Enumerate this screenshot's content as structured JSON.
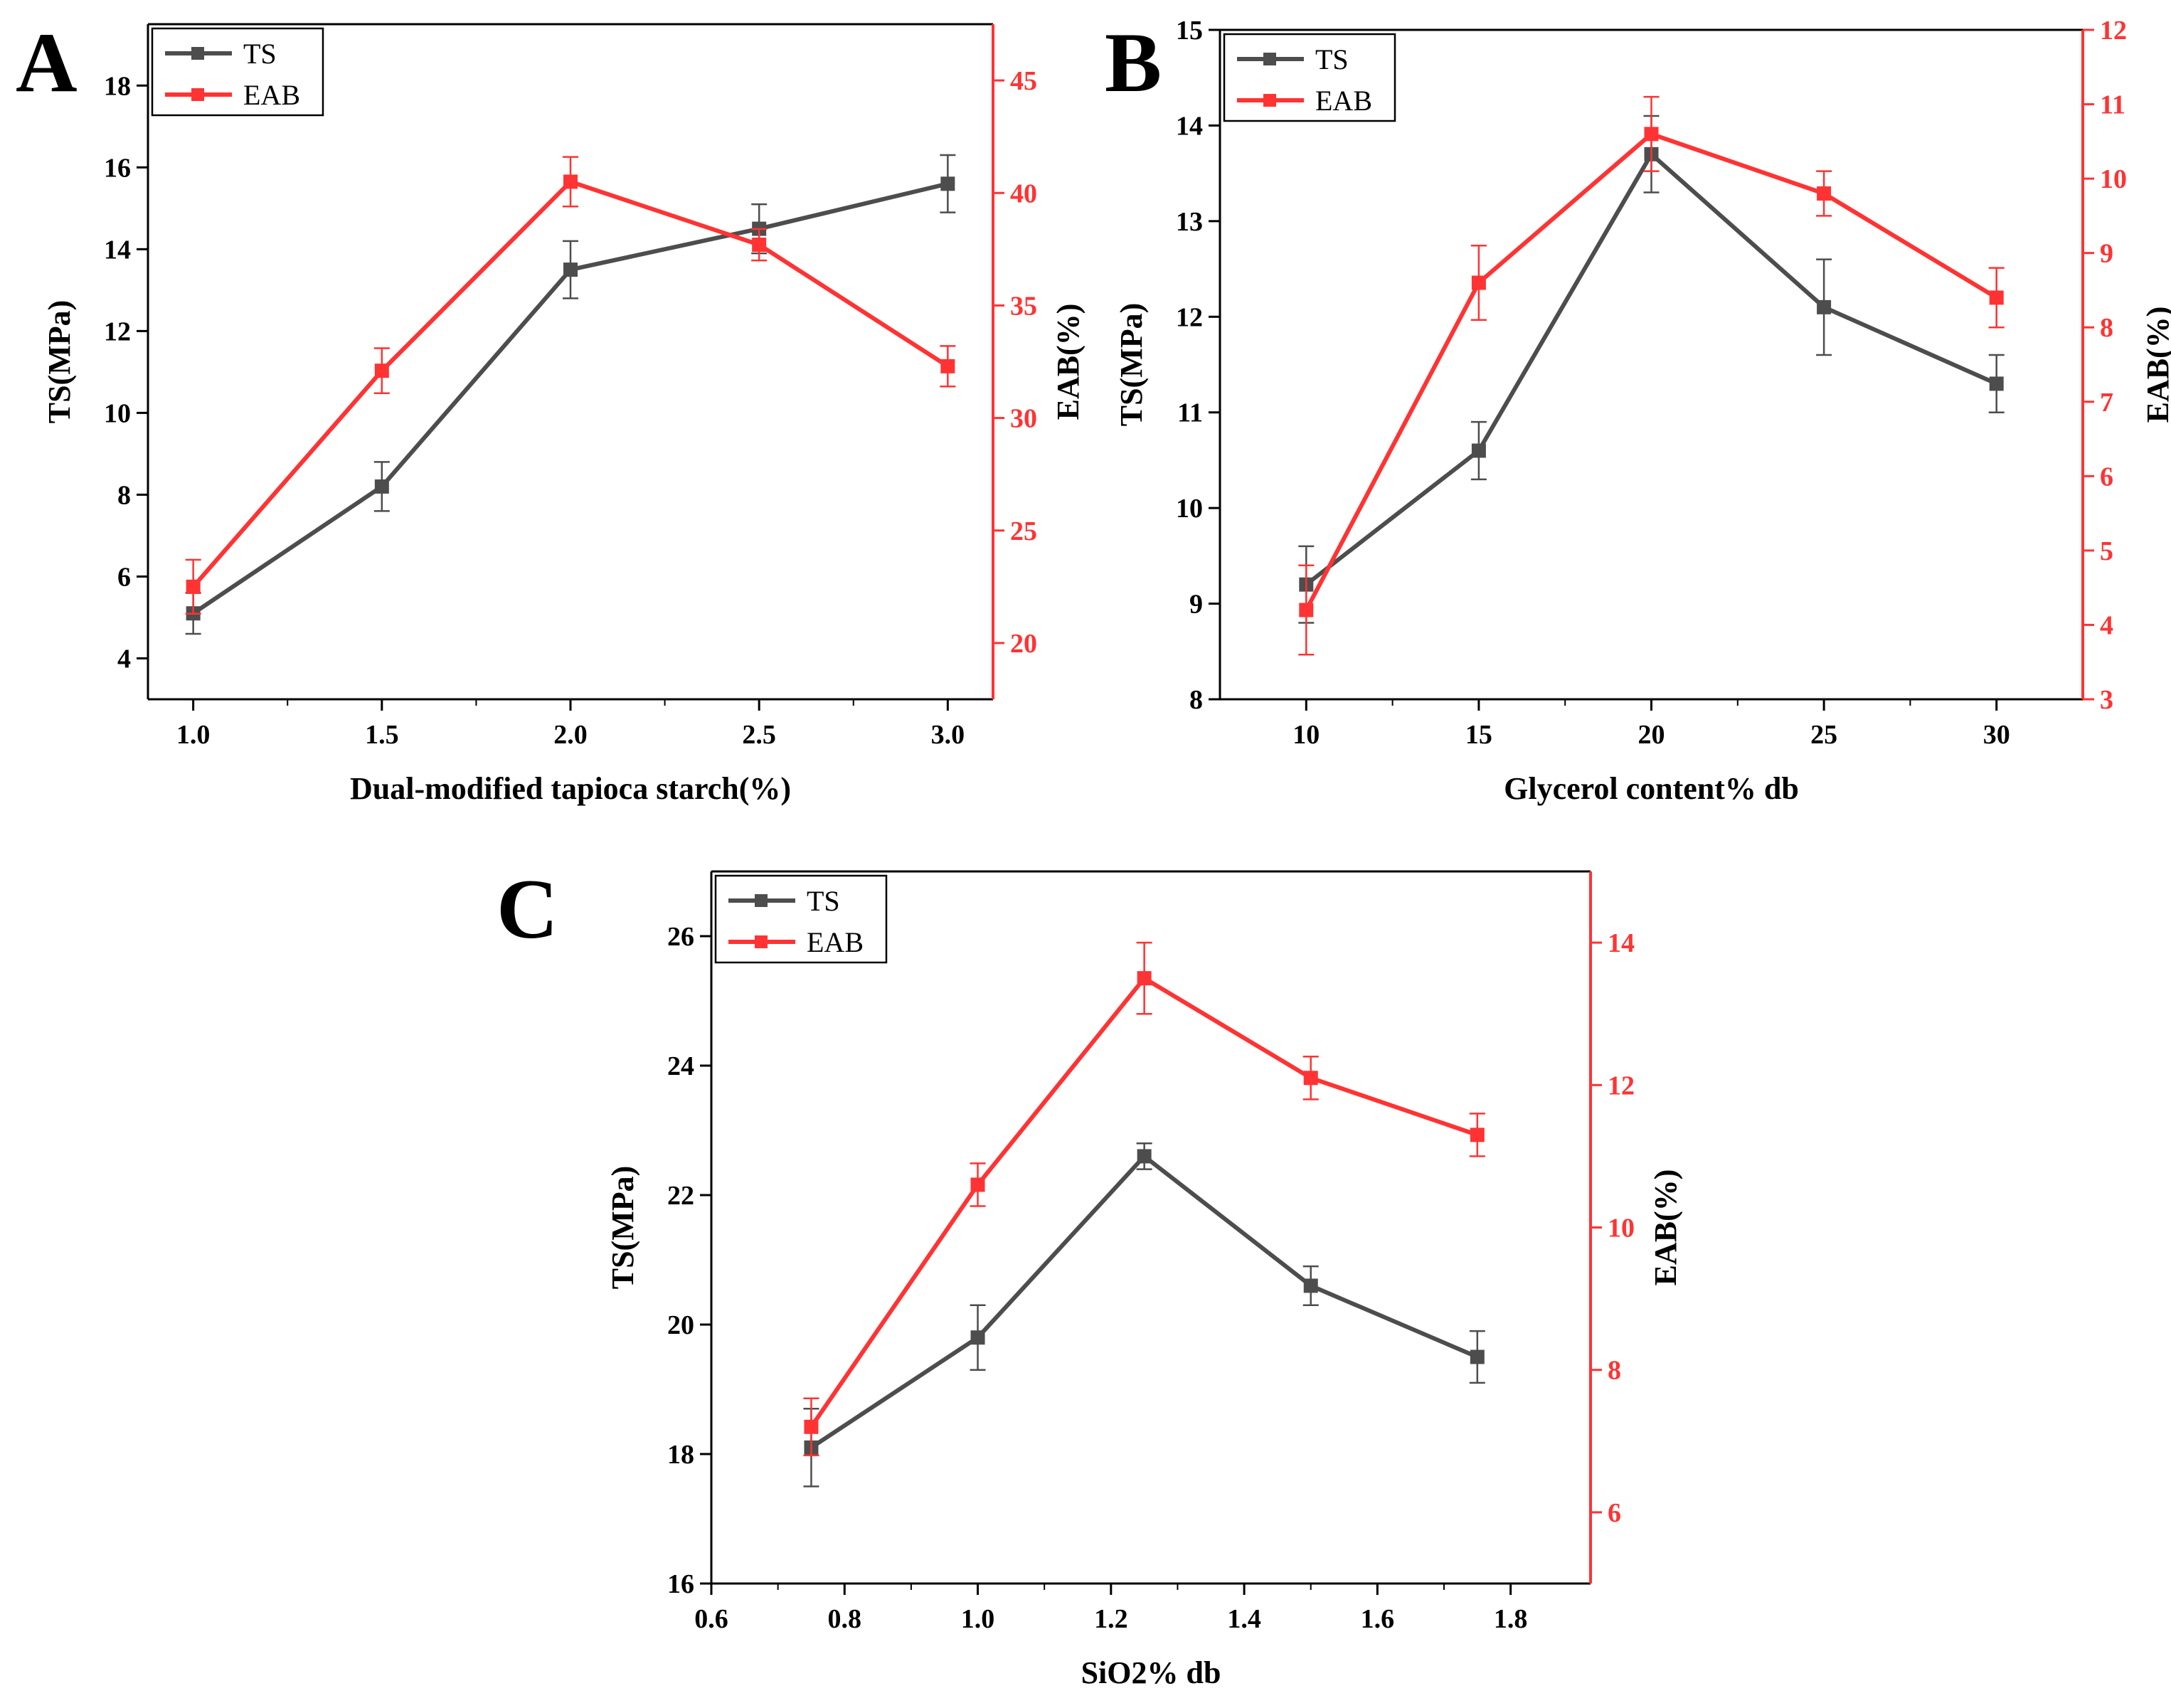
{
  "figure": {
    "colors": {
      "ts": "#4d4d4d",
      "eab": "#ff3333",
      "axis": "#000000"
    }
  },
  "chart_data": [
    {
      "panel": "A",
      "type": "line",
      "xlabel": "Dual-modified tapioca starch(%)",
      "ylabel_left": "TS(MPa)",
      "ylabel_right": "EAB(%)",
      "xlim": [
        0.88,
        3.12
      ],
      "ylim_left": [
        3,
        19.5
      ],
      "ylim_right": [
        17.5,
        47.5
      ],
      "xticks": [
        "1.0",
        "1.5",
        "2.0",
        "2.5",
        "3.0"
      ],
      "yticks_left": [
        "4",
        "6",
        "8",
        "10",
        "12",
        "14",
        "16",
        "18"
      ],
      "yticks_right": [
        "20",
        "25",
        "30",
        "35",
        "40",
        "45"
      ],
      "legend": {
        "position": "top-left",
        "entries": [
          "TS",
          "EAB"
        ]
      },
      "x": [
        1.0,
        1.5,
        2.0,
        2.5,
        3.0
      ],
      "series": [
        {
          "name": "TS",
          "axis": "left",
          "values": [
            5.1,
            8.2,
            13.5,
            14.5,
            15.6
          ],
          "errors": [
            0.5,
            0.6,
            0.7,
            0.6,
            0.7
          ]
        },
        {
          "name": "EAB",
          "axis": "right",
          "values": [
            22.5,
            32.1,
            40.5,
            37.7,
            32.3
          ],
          "errors": [
            1.2,
            1.0,
            1.1,
            0.7,
            0.9
          ]
        }
      ]
    },
    {
      "panel": "B",
      "type": "line",
      "xlabel": "Glycerol content% db",
      "ylabel_left": "TS(MPa)",
      "ylabel_right": "EAB(%)",
      "xlim": [
        7.5,
        32.5
      ],
      "ylim_left": [
        8,
        15
      ],
      "ylim_right": [
        3,
        12
      ],
      "xticks": [
        "10",
        "15",
        "20",
        "25",
        "30"
      ],
      "yticks_left": [
        "8",
        "9",
        "10",
        "11",
        "12",
        "13",
        "14",
        "15"
      ],
      "yticks_right": [
        "3",
        "4",
        "5",
        "6",
        "7",
        "8",
        "9",
        "10",
        "11",
        "12"
      ],
      "legend": {
        "position": "top-left",
        "entries": [
          "TS",
          "EAB"
        ]
      },
      "x": [
        10,
        15,
        20,
        25,
        30
      ],
      "series": [
        {
          "name": "TS",
          "axis": "left",
          "values": [
            9.2,
            10.6,
            13.7,
            12.1,
            11.3
          ],
          "errors": [
            0.4,
            0.3,
            0.4,
            0.5,
            0.3
          ]
        },
        {
          "name": "EAB",
          "axis": "right",
          "values": [
            4.2,
            8.6,
            10.6,
            9.8,
            8.4
          ],
          "errors": [
            0.6,
            0.5,
            0.5,
            0.3,
            0.4
          ]
        }
      ]
    },
    {
      "panel": "C",
      "type": "line",
      "xlabel": "SiO2% db",
      "ylabel_left": "TS(MPa)",
      "ylabel_right": "EAB(%)",
      "xlim": [
        0.6,
        1.92
      ],
      "ylim_left": [
        16,
        27
      ],
      "ylim_right": [
        5,
        15
      ],
      "xticks": [
        "0.6",
        "0.8",
        "1.0",
        "1.2",
        "1.4",
        "1.6",
        "1.8"
      ],
      "yticks_left": [
        "16",
        "18",
        "20",
        "22",
        "24",
        "26"
      ],
      "yticks_right": [
        "6",
        "8",
        "10",
        "12",
        "14"
      ],
      "legend": {
        "position": "top-left",
        "entries": [
          "TS",
          "EAB"
        ]
      },
      "x": [
        0.75,
        1.0,
        1.25,
        1.5,
        1.75
      ],
      "series": [
        {
          "name": "TS",
          "axis": "left",
          "values": [
            18.1,
            19.8,
            22.6,
            20.6,
            19.5
          ],
          "errors": [
            0.6,
            0.5,
            0.2,
            0.3,
            0.4
          ]
        },
        {
          "name": "EAB",
          "axis": "right",
          "values": [
            7.2,
            10.6,
            13.5,
            12.1,
            11.3
          ],
          "errors": [
            0.4,
            0.3,
            0.5,
            0.3,
            0.3
          ]
        }
      ]
    }
  ]
}
